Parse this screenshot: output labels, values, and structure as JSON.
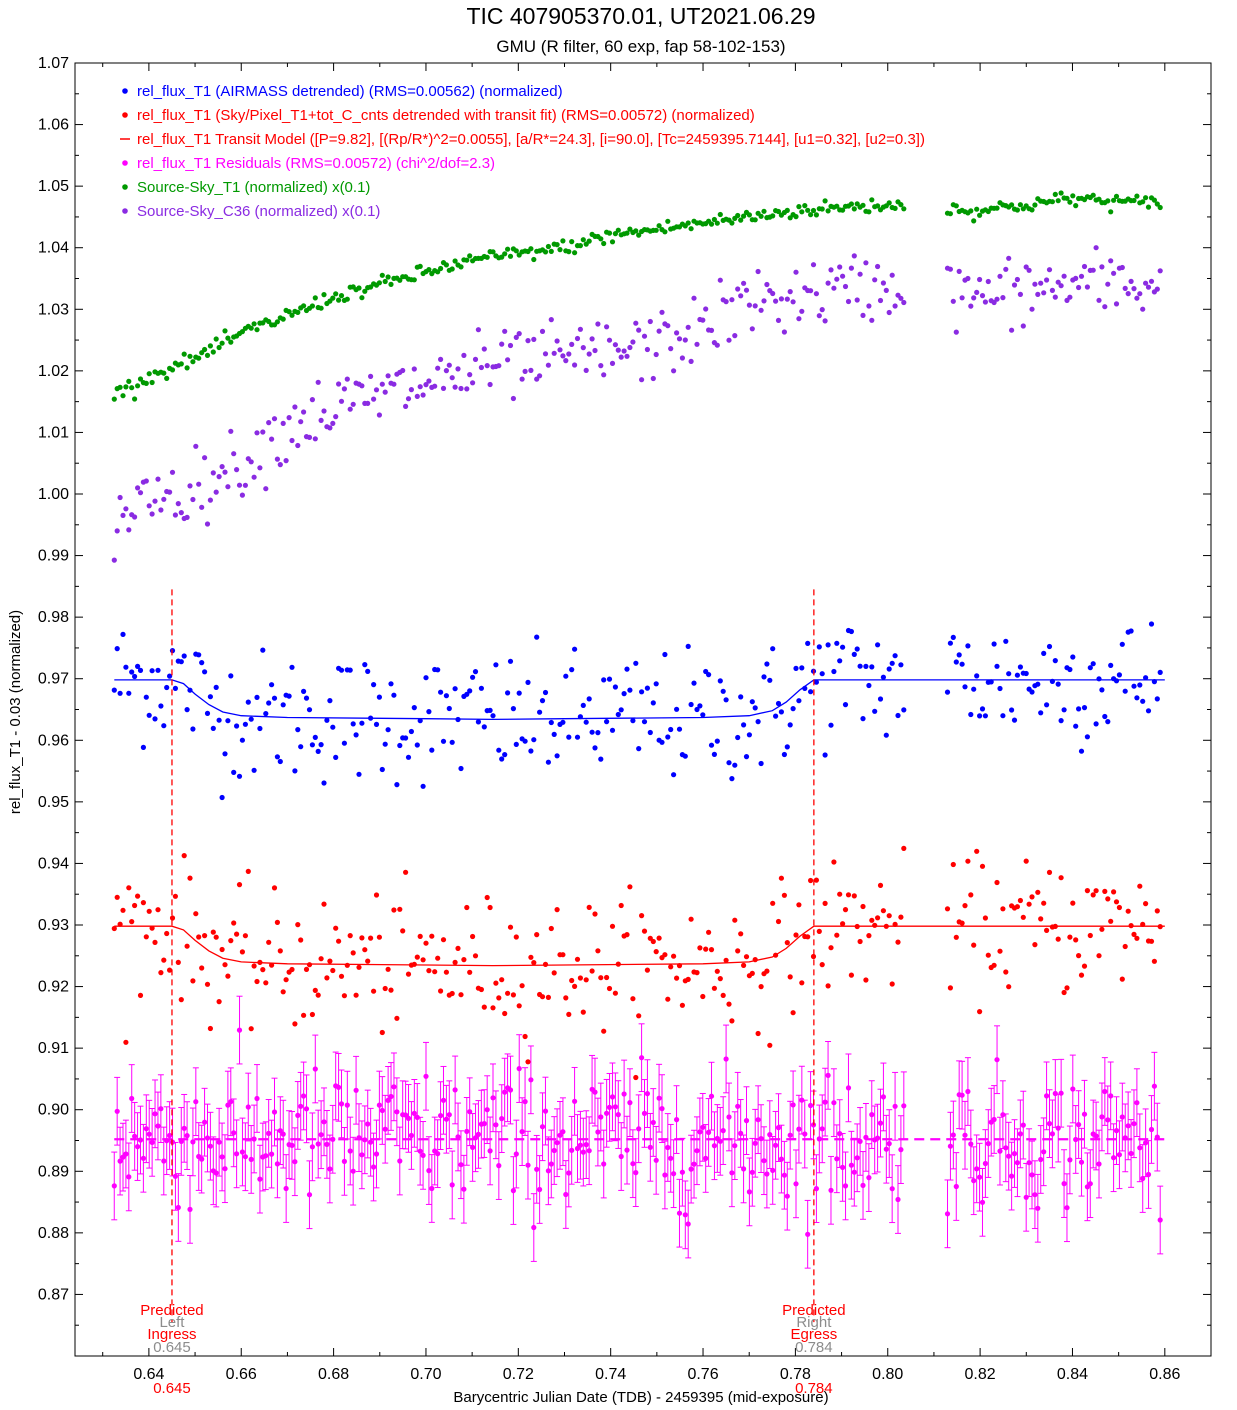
{
  "chart_data": {
    "type": "scatter",
    "title": "TIC 407905370.01, UT2021.06.29",
    "subtitle": "GMU (R filter, 60 exp, fap 58-102-153)",
    "xlabel": "Barycentric Julian Date (TDB) - 2459395 (mid-exposure)",
    "ylabel": "rel_flux_T1 - 0.03 (normalized)",
    "xlim": [
      0.624,
      0.87
    ],
    "ylim": [
      0.86,
      1.07
    ],
    "xticks": [
      "0.64",
      "0.66",
      "0.68",
      "0.70",
      "0.72",
      "0.74",
      "0.76",
      "0.78",
      "0.80",
      "0.82",
      "0.84",
      "0.86"
    ],
    "yticks": [
      "0.87",
      "0.88",
      "0.89",
      "0.90",
      "0.91",
      "0.92",
      "0.93",
      "0.94",
      "0.95",
      "0.96",
      "0.97",
      "0.98",
      "0.99",
      "1.00",
      "1.01",
      "1.02",
      "1.03",
      "1.04",
      "1.05",
      "1.06",
      "1.07"
    ],
    "grid": false,
    "legend_position": "top-left",
    "colors": {
      "airmass": "#0000ff",
      "sky": "#ff0000",
      "model": "#ff0000",
      "resid": "#ff00ff",
      "t1": "#009900",
      "c36": "#8a2be2",
      "gray": "#8c8c8c"
    },
    "legend": [
      {
        "marker": "dot",
        "color_key": "airmass",
        "label": "rel_flux_T1 (AIRMASS detrended) (RMS=0.00562) (normalized)"
      },
      {
        "marker": "dot",
        "color_key": "sky",
        "label": "rel_flux_T1 (Sky/Pixel_T1+tot_C_cnts detrended with transit fit) (RMS=0.00572) (normalized)"
      },
      {
        "marker": "line",
        "color_key": "model",
        "label": "rel_flux_T1 Transit Model ([P=9.82], [(Rp/R*)^2=0.0055], [a/R*=24.3], [i=90.0], [Tc=2459395.7144], [u1=0.32], [u2=0.3])"
      },
      {
        "marker": "dot",
        "color_key": "resid",
        "label": "rel_flux_T1 Residuals (RMS=0.00572) (chi^2/dof=2.3)"
      },
      {
        "marker": "dot",
        "color_key": "t1",
        "label": "Source-Sky_T1 (normalized) x(0.1)"
      },
      {
        "marker": "dot",
        "color_key": "c36",
        "label": "Source-Sky_C36 (normalized) x(0.1)"
      }
    ],
    "series": [
      {
        "name": "rel_flux_T1 (AIRMASS detrended)",
        "color_key": "airmass",
        "kind": "scatter",
        "baseline": 0.9698,
        "depth": 0.0061,
        "scatter": 0.0056
      },
      {
        "name": "rel_flux_T1 (Sky/Pixel_T1+tot_C_cnts detrended with transit fit)",
        "color_key": "sky",
        "kind": "scatter",
        "baseline": 0.9298,
        "depth": 0.0064,
        "scatter": 0.0057
      },
      {
        "name": "rel_flux_T1 Transit Model",
        "color_key": "model",
        "kind": "line",
        "points": [
          [
            0.6325,
            0.9298
          ],
          [
            0.645,
            0.9298
          ],
          [
            0.6475,
            0.9292
          ],
          [
            0.65,
            0.9275
          ],
          [
            0.653,
            0.9258
          ],
          [
            0.656,
            0.9246
          ],
          [
            0.66,
            0.924
          ],
          [
            0.67,
            0.9237
          ],
          [
            0.7,
            0.9235
          ],
          [
            0.7144,
            0.9234
          ],
          [
            0.73,
            0.9235
          ],
          [
            0.76,
            0.9237
          ],
          [
            0.77,
            0.924
          ],
          [
            0.775,
            0.9248
          ],
          [
            0.778,
            0.9262
          ],
          [
            0.781,
            0.9282
          ],
          [
            0.784,
            0.9298
          ],
          [
            0.86,
            0.9298
          ]
        ]
      },
      {
        "name": "rel_flux_T1 Residuals",
        "color_key": "resid",
        "kind": "scatter_errorbar",
        "baseline": 0.8952,
        "scatter": 0.0057,
        "yerr": 0.0055
      },
      {
        "name": "Source-Sky_T1 (normalized) x(0.1)",
        "color_key": "t1",
        "kind": "scatter",
        "trend": [
          [
            0.632,
            1.016
          ],
          [
            0.64,
            1.019
          ],
          [
            0.65,
            1.022
          ],
          [
            0.66,
            1.026
          ],
          [
            0.67,
            1.029
          ],
          [
            0.68,
            1.032
          ],
          [
            0.69,
            1.034
          ],
          [
            0.7,
            1.036
          ],
          [
            0.71,
            1.038
          ],
          [
            0.72,
            1.039
          ],
          [
            0.73,
            1.04
          ],
          [
            0.74,
            1.042
          ],
          [
            0.75,
            1.043
          ],
          [
            0.76,
            1.044
          ],
          [
            0.77,
            1.045
          ],
          [
            0.78,
            1.046
          ],
          [
            0.8,
            1.047
          ],
          [
            0.82,
            1.046
          ],
          [
            0.84,
            1.048
          ],
          [
            0.86,
            1.047
          ]
        ],
        "scatter": 0.0006
      },
      {
        "name": "Source-Sky_C36 (normalized) x(0.1)",
        "color_key": "c36",
        "kind": "scatter",
        "trend": [
          [
            0.632,
            0.995
          ],
          [
            0.64,
            1.0
          ],
          [
            0.65,
            1.001
          ],
          [
            0.66,
            1.005
          ],
          [
            0.67,
            1.011
          ],
          [
            0.68,
            1.014
          ],
          [
            0.69,
            1.016
          ],
          [
            0.7,
            1.018
          ],
          [
            0.71,
            1.02
          ],
          [
            0.72,
            1.021
          ],
          [
            0.73,
            1.022
          ],
          [
            0.74,
            1.023
          ],
          [
            0.75,
            1.024
          ],
          [
            0.76,
            1.027
          ],
          [
            0.77,
            1.031
          ],
          [
            0.78,
            1.032
          ],
          [
            0.8,
            1.034
          ],
          [
            0.82,
            1.032
          ],
          [
            0.84,
            1.034
          ],
          [
            0.86,
            1.034
          ]
        ],
        "scatter": 0.0028
      }
    ],
    "x_range": [
      0.6325,
      0.859
    ],
    "gap": [
      0.8035,
      0.8125
    ],
    "n_points": 360,
    "residual_baseline": 0.8952,
    "markers": [
      {
        "x": 0.645,
        "label_red": [
          "Predicted",
          "Ingress"
        ],
        "label_gray": [
          "Left",
          "0.645"
        ],
        "xlabel_red": "0.645"
      },
      {
        "x": 0.784,
        "label_red": [
          "Predicted",
          "Egress"
        ],
        "label_gray": [
          "Right",
          "0.784"
        ],
        "xlabel_red": "0.784"
      }
    ]
  }
}
